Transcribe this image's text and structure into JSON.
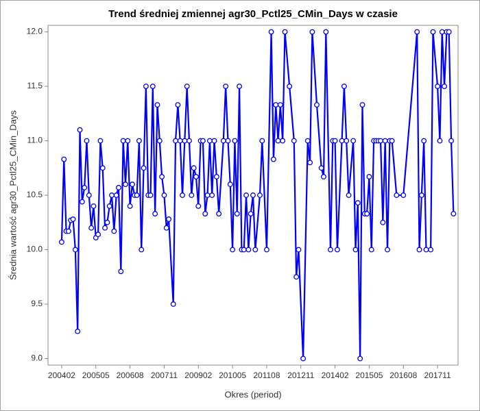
{
  "chart_data": {
    "type": "line",
    "title": "Trend średniej zmiennej agr30_Pctl25_CMin_Days w czasie",
    "x_label": "Okres (period)",
    "y_label": "Średnia wartość agr30_Pctl25_CMin_Days",
    "x": [
      "200402",
      "200403",
      "200404",
      "200405",
      "200406",
      "200407",
      "200408",
      "200409",
      "200410",
      "200411",
      "200412",
      "200501",
      "200502",
      "200503",
      "200504",
      "200505",
      "200506",
      "200507",
      "200508",
      "200509",
      "200510",
      "200511",
      "200512",
      "200601",
      "200602",
      "200603",
      "200604",
      "200605",
      "200606",
      "200607",
      "200608",
      "200609",
      "200610",
      "200611",
      "200612",
      "200701",
      "200702",
      "200703",
      "200704",
      "200705",
      "200706",
      "200707",
      "200708",
      "200709",
      "200710",
      "200711",
      "200712",
      "200801",
      "200803",
      "200804",
      "200805",
      "200806",
      "200807",
      "200808",
      "200809",
      "200810",
      "200811",
      "200812",
      "200901",
      "200902",
      "200903",
      "200904",
      "200905",
      "200906",
      "200907",
      "200908",
      "200909",
      "200910",
      "200911",
      "201001",
      "201002",
      "201003",
      "201004",
      "201005",
      "201006",
      "201007",
      "201008",
      "201009",
      "201010",
      "201011",
      "201012",
      "201101",
      "201102",
      "201103",
      "201105",
      "201106",
      "201108",
      "201110",
      "201111",
      "201112",
      "201201",
      "201202",
      "201203",
      "201204",
      "201206",
      "201208",
      "201209",
      "201210",
      "201212",
      "201302",
      "201303",
      "201304",
      "201306",
      "201308",
      "201309",
      "201310",
      "201312",
      "201401",
      "201402",
      "201403",
      "201405",
      "201406",
      "201407",
      "201408",
      "201410",
      "201411",
      "201412",
      "201501",
      "201502",
      "201503",
      "201504",
      "201505",
      "201506",
      "201507",
      "201508",
      "201509",
      "201510",
      "201511",
      "201512",
      "201601",
      "201602",
      "201603",
      "201605",
      "201608",
      "201702",
      "201703",
      "201704",
      "201705",
      "201706",
      "201708",
      "201709",
      "201711",
      "201712",
      "201801",
      "201802",
      "201803",
      "201804",
      "201805",
      "201806"
    ],
    "series": [
      {
        "name": "Średnia",
        "color": "#0000ff",
        "values": [
          10.07,
          10.83,
          10.17,
          10.17,
          10.27,
          10.28,
          10.0,
          9.25,
          11.1,
          10.44,
          10.57,
          11.0,
          10.5,
          10.2,
          10.4,
          10.11,
          10.14,
          11.0,
          10.75,
          10.2,
          10.25,
          10.4,
          10.5,
          10.17,
          10.5,
          10.57,
          9.8,
          11.0,
          10.6,
          11.0,
          10.4,
          10.6,
          10.5,
          10.5,
          11.0,
          10.0,
          10.75,
          11.5,
          10.5,
          10.5,
          11.5,
          10.33,
          11.33,
          11.0,
          10.67,
          10.5,
          10.2,
          10.28,
          9.5,
          11.0,
          11.33,
          11.0,
          10.5,
          11.0,
          11.5,
          11.0,
          10.5,
          10.75,
          10.67,
          10.4,
          11.0,
          11.0,
          10.33,
          10.5,
          11.0,
          10.5,
          11.0,
          10.67,
          10.33,
          11.0,
          11.5,
          11.0,
          10.6,
          10.0,
          11.0,
          10.33,
          11.5,
          10.0,
          10.0,
          10.5,
          10.0,
          10.33,
          10.5,
          10.0,
          10.5,
          11.0,
          10.0,
          12.0,
          10.83,
          11.33,
          11.0,
          11.33,
          11.0,
          12.0,
          11.5,
          11.0,
          9.75,
          10.0,
          9.0,
          11.0,
          10.8,
          12.0,
          11.33,
          10.75,
          10.67,
          12.0,
          10.0,
          11.0,
          11.0,
          10.0,
          11.0,
          11.5,
          11.0,
          10.5,
          11.0,
          10.0,
          10.43,
          9.0,
          11.33,
          10.33,
          10.33,
          10.67,
          10.0,
          11.0,
          11.0,
          11.0,
          11.0,
          10.25,
          11.0,
          10.0,
          11.0,
          11.0,
          10.5,
          10.5,
          12.0,
          10.0,
          10.5,
          11.0,
          10.0,
          10.0,
          12.0,
          11.5,
          11.0,
          12.0,
          11.5,
          12.0,
          12.0,
          11.0,
          10.33
        ]
      }
    ],
    "xlim": [
      "200308",
      "201808"
    ],
    "xticks": [
      "200402",
      "200505",
      "200608",
      "200711",
      "200902",
      "201005",
      "201108",
      "201211",
      "201402",
      "201505",
      "201608",
      "201711"
    ],
    "ylim": [
      8.94,
      12.06
    ],
    "yticks": [
      {
        "value": 9,
        "label": "9.0"
      },
      {
        "value": 9.5,
        "label": "9.5"
      },
      {
        "value": 10,
        "label": "10.0"
      },
      {
        "value": 10.5,
        "label": "10.5"
      },
      {
        "value": 11,
        "label": "11.0"
      },
      {
        "value": 11.5,
        "label": "11.5"
      },
      {
        "value": 12,
        "label": "12.0"
      }
    ]
  }
}
